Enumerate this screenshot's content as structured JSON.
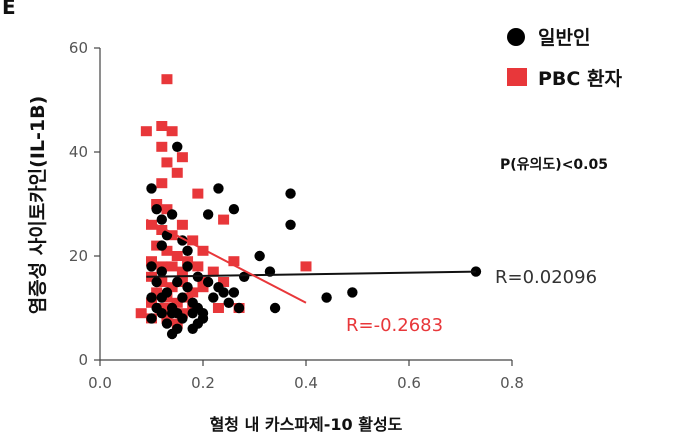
{
  "chart_data": {
    "type": "scatter",
    "panel_label": "E",
    "xlabel": "혈청 내 카스파제-10 활성도",
    "ylabel": "염증성 사이토카인(IL-1B)",
    "xlim": [
      0,
      0.8
    ],
    "ylim": [
      0,
      60
    ],
    "x_ticks": [
      0.0,
      0.2,
      0.4,
      0.6,
      0.8
    ],
    "x_tick_labels": [
      "0.0",
      "0.2",
      "0.4",
      "0.6",
      "0.8"
    ],
    "y_ticks": [
      0,
      20,
      40,
      60
    ],
    "y_tick_labels": [
      "0",
      "20",
      "40",
      "60"
    ],
    "grid": false,
    "legend_position": "top-right",
    "p_value_text": "P(유의도)<0.05",
    "series": [
      {
        "name": "일반인",
        "marker": "circle",
        "color": "#000000",
        "points": [
          [
            0.1,
            33
          ],
          [
            0.11,
            29
          ],
          [
            0.12,
            27
          ],
          [
            0.12,
            22
          ],
          [
            0.13,
            24
          ],
          [
            0.14,
            28
          ],
          [
            0.15,
            41
          ],
          [
            0.16,
            23
          ],
          [
            0.17,
            21
          ],
          [
            0.19,
            16
          ],
          [
            0.21,
            28
          ],
          [
            0.23,
            33
          ],
          [
            0.26,
            29
          ],
          [
            0.28,
            16
          ],
          [
            0.31,
            20
          ],
          [
            0.33,
            17
          ],
          [
            0.37,
            32
          ],
          [
            0.37,
            26
          ],
          [
            0.1,
            18
          ],
          [
            0.11,
            15
          ],
          [
            0.12,
            12
          ],
          [
            0.13,
            13
          ],
          [
            0.14,
            10
          ],
          [
            0.15,
            9
          ],
          [
            0.16,
            12
          ],
          [
            0.17,
            14
          ],
          [
            0.18,
            11
          ],
          [
            0.19,
            10
          ],
          [
            0.2,
            9
          ],
          [
            0.21,
            15
          ],
          [
            0.22,
            12
          ],
          [
            0.23,
            14
          ],
          [
            0.24,
            13
          ],
          [
            0.25,
            11
          ],
          [
            0.26,
            13
          ],
          [
            0.27,
            10
          ],
          [
            0.1,
            12
          ],
          [
            0.1,
            8
          ],
          [
            0.12,
            9
          ],
          [
            0.13,
            7
          ],
          [
            0.14,
            5
          ],
          [
            0.15,
            6
          ],
          [
            0.16,
            8
          ],
          [
            0.18,
            6
          ],
          [
            0.19,
            7
          ],
          [
            0.2,
            8
          ],
          [
            0.14,
            9
          ],
          [
            0.18,
            9
          ],
          [
            0.12,
            17
          ],
          [
            0.15,
            15
          ],
          [
            0.17,
            18
          ],
          [
            0.11,
            10
          ],
          [
            0.34,
            10
          ],
          [
            0.44,
            12
          ],
          [
            0.49,
            13
          ],
          [
            0.73,
            17
          ]
        ]
      },
      {
        "name": "PBC 환자",
        "marker": "square",
        "color": "#e8373a",
        "points": [
          [
            0.13,
            54
          ],
          [
            0.09,
            44
          ],
          [
            0.12,
            45
          ],
          [
            0.14,
            44
          ],
          [
            0.12,
            41
          ],
          [
            0.13,
            38
          ],
          [
            0.15,
            36
          ],
          [
            0.16,
            39
          ],
          [
            0.19,
            32
          ],
          [
            0.24,
            27
          ],
          [
            0.12,
            34
          ],
          [
            0.11,
            30
          ],
          [
            0.13,
            29
          ],
          [
            0.1,
            26
          ],
          [
            0.12,
            25
          ],
          [
            0.14,
            24
          ],
          [
            0.16,
            26
          ],
          [
            0.18,
            23
          ],
          [
            0.2,
            21
          ],
          [
            0.11,
            22
          ],
          [
            0.13,
            21
          ],
          [
            0.15,
            20
          ],
          [
            0.17,
            19
          ],
          [
            0.1,
            19
          ],
          [
            0.12,
            18
          ],
          [
            0.14,
            18
          ],
          [
            0.16,
            17
          ],
          [
            0.19,
            18
          ],
          [
            0.22,
            17
          ],
          [
            0.26,
            19
          ],
          [
            0.1,
            16
          ],
          [
            0.12,
            15
          ],
          [
            0.14,
            14
          ],
          [
            0.16,
            15
          ],
          [
            0.18,
            13
          ],
          [
            0.2,
            14
          ],
          [
            0.24,
            15
          ],
          [
            0.11,
            13
          ],
          [
            0.13,
            12
          ],
          [
            0.15,
            11
          ],
          [
            0.17,
            12
          ],
          [
            0.1,
            11
          ],
          [
            0.12,
            10
          ],
          [
            0.14,
            10
          ],
          [
            0.16,
            9
          ],
          [
            0.18,
            10
          ],
          [
            0.23,
            10
          ],
          [
            0.27,
            10
          ],
          [
            0.1,
            8
          ],
          [
            0.13,
            8
          ],
          [
            0.15,
            7
          ],
          [
            0.08,
            9
          ],
          [
            0.2,
            15
          ],
          [
            0.4,
            18
          ]
        ]
      }
    ],
    "regression": [
      {
        "series": "일반인",
        "from": [
          0.09,
          16
        ],
        "to": [
          0.73,
          17
        ],
        "label": "R=0.02096",
        "color": "#111111"
      },
      {
        "series": "PBC 환자",
        "from": [
          0.09,
          27
        ],
        "to": [
          0.4,
          11
        ],
        "label": "R=-0.2683",
        "color": "#e8373a"
      }
    ]
  }
}
